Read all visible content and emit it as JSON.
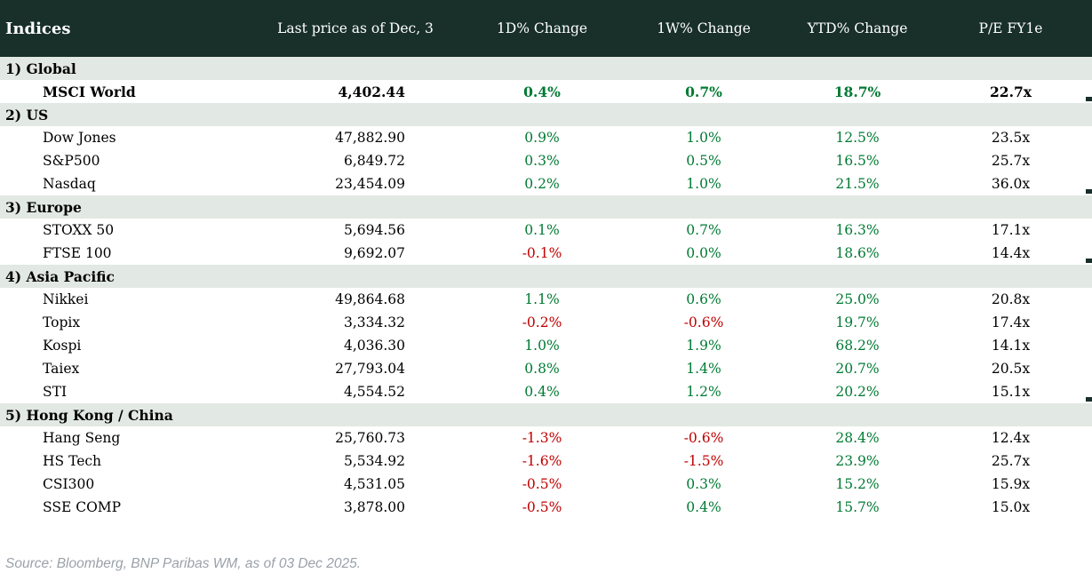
{
  "chart_data": {
    "type": "table",
    "title": "Indices",
    "columns": [
      "Indices",
      "Last price as of Dec, 3",
      "1D% Change",
      "1W% Change",
      "YTD% Change",
      "P/E FY1e"
    ],
    "sections": [
      {
        "label": "1) Global",
        "rows": [
          {
            "name": "MSCI World",
            "last_price": "4,402.44",
            "chg_1d": "0.4%",
            "chg_1w": "0.7%",
            "chg_ytd": "18.7%",
            "pe_fy1e": "22.7x",
            "bold": true
          }
        ]
      },
      {
        "label": "2) US",
        "rows": [
          {
            "name": "Dow Jones",
            "last_price": "47,882.90",
            "chg_1d": "0.9%",
            "chg_1w": "1.0%",
            "chg_ytd": "12.5%",
            "pe_fy1e": "23.5x"
          },
          {
            "name": "S&P500",
            "last_price": "6,849.72",
            "chg_1d": "0.3%",
            "chg_1w": "0.5%",
            "chg_ytd": "16.5%",
            "pe_fy1e": "25.7x"
          },
          {
            "name": "Nasdaq",
            "last_price": "23,454.09",
            "chg_1d": "0.2%",
            "chg_1w": "1.0%",
            "chg_ytd": "21.5%",
            "pe_fy1e": "36.0x"
          }
        ]
      },
      {
        "label": "3) Europe",
        "rows": [
          {
            "name": "STOXX 50",
            "last_price": "5,694.56",
            "chg_1d": "0.1%",
            "chg_1w": "0.7%",
            "chg_ytd": "16.3%",
            "pe_fy1e": "17.1x"
          },
          {
            "name": "FTSE 100",
            "last_price": "9,692.07",
            "chg_1d": "-0.1%",
            "chg_1w": "0.0%",
            "chg_ytd": "18.6%",
            "pe_fy1e": "14.4x"
          }
        ]
      },
      {
        "label": "4) Asia Pacific",
        "rows": [
          {
            "name": "Nikkei",
            "last_price": "49,864.68",
            "chg_1d": "1.1%",
            "chg_1w": "0.6%",
            "chg_ytd": "25.0%",
            "pe_fy1e": "20.8x"
          },
          {
            "name": "Topix",
            "last_price": "3,334.32",
            "chg_1d": "-0.2%",
            "chg_1w": "-0.6%",
            "chg_ytd": "19.7%",
            "pe_fy1e": "17.4x"
          },
          {
            "name": "Kospi",
            "last_price": "4,036.30",
            "chg_1d": "1.0%",
            "chg_1w": "1.9%",
            "chg_ytd": "68.2%",
            "pe_fy1e": "14.1x"
          },
          {
            "name": "Taiex",
            "last_price": "27,793.04",
            "chg_1d": "0.8%",
            "chg_1w": "1.4%",
            "chg_ytd": "20.7%",
            "pe_fy1e": "20.5x"
          },
          {
            "name": "STI",
            "last_price": "4,554.52",
            "chg_1d": "0.4%",
            "chg_1w": "1.2%",
            "chg_ytd": "20.2%",
            "pe_fy1e": "15.1x"
          }
        ]
      },
      {
        "label": "5) Hong Kong / China",
        "rows": [
          {
            "name": "Hang Seng",
            "last_price": "25,760.73",
            "chg_1d": "-1.3%",
            "chg_1w": "-0.6%",
            "chg_ytd": "28.4%",
            "pe_fy1e": "12.4x"
          },
          {
            "name": "HS Tech",
            "last_price": "5,534.92",
            "chg_1d": "-1.6%",
            "chg_1w": "-1.5%",
            "chg_ytd": "23.9%",
            "pe_fy1e": "25.7x"
          },
          {
            "name": "CSI300",
            "last_price": "4,531.05",
            "chg_1d": "-0.5%",
            "chg_1w": "0.3%",
            "chg_ytd": "15.2%",
            "pe_fy1e": "15.9x"
          },
          {
            "name": "SSE COMP",
            "last_price": "3,878.00",
            "chg_1d": "-0.5%",
            "chg_1w": "0.4%",
            "chg_ytd": "15.7%",
            "pe_fy1e": "15.0x"
          }
        ]
      }
    ]
  },
  "colors": {
    "header_bg": "#182f2a",
    "section_bg": "#e2e8e3",
    "positive_change": "#007a33",
    "negative_change": "#c00000"
  },
  "footer": {
    "source_note": "Source: Bloomberg, BNP Paribas WM, as of 03 Dec 2025."
  }
}
